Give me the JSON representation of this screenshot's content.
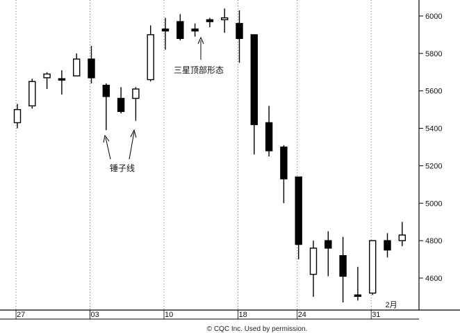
{
  "chart_data": {
    "type": "candlestick",
    "title": "",
    "xlabel": "",
    "ylabel": "",
    "ylim": [
      4450,
      6060
    ],
    "y_ticks": [
      6000,
      5800,
      5600,
      5400,
      5200,
      5000,
      4800,
      4600
    ],
    "y_tick_labels": [
      "6000",
      "5800",
      "5600",
      "5400",
      "5200",
      "5000",
      "4800",
      "4600"
    ],
    "x_tick_labels": [
      {
        "label": "27",
        "index": 0
      },
      {
        "label": "03",
        "index": 5
      },
      {
        "label": "10",
        "index": 10
      },
      {
        "label": "18",
        "index": 15
      },
      {
        "label": "24",
        "index": 19
      },
      {
        "label": "31",
        "index": 24
      },
      {
        "label": "2月",
        "index": 25
      }
    ],
    "grid": "vertical dotted at week starts",
    "candles": [
      {
        "o": 5430,
        "h": 5530,
        "l": 5400,
        "c": 5500
      },
      {
        "o": 5520,
        "h": 5665,
        "l": 5505,
        "c": 5650
      },
      {
        "o": 5670,
        "h": 5700,
        "l": 5610,
        "c": 5690
      },
      {
        "o": 5665,
        "h": 5710,
        "l": 5580,
        "c": 5665
      },
      {
        "o": 5680,
        "h": 5800,
        "l": 5680,
        "c": 5770
      },
      {
        "o": 5770,
        "h": 5840,
        "l": 5640,
        "c": 5670
      },
      {
        "o": 5630,
        "h": 5640,
        "l": 5390,
        "c": 5570
      },
      {
        "o": 5560,
        "h": 5620,
        "l": 5480,
        "c": 5490
      },
      {
        "o": 5560,
        "h": 5620,
        "l": 5440,
        "c": 5610
      },
      {
        "o": 5660,
        "h": 5950,
        "l": 5650,
        "c": 5900
      },
      {
        "o": 5930,
        "h": 5990,
        "l": 5820,
        "c": 5920
      },
      {
        "o": 5970,
        "h": 6010,
        "l": 5870,
        "c": 5880
      },
      {
        "o": 5930,
        "h": 5960,
        "l": 5890,
        "c": 5920
      },
      {
        "o": 5980,
        "h": 5990,
        "l": 5940,
        "c": 5970
      },
      {
        "o": 5980,
        "h": 6040,
        "l": 5910,
        "c": 5990
      },
      {
        "o": 5960,
        "h": 6030,
        "l": 5750,
        "c": 5880
      },
      {
        "o": 5900,
        "h": 5900,
        "l": 5260,
        "c": 5420
      },
      {
        "o": 5430,
        "h": 5520,
        "l": 5250,
        "c": 5280
      },
      {
        "o": 5300,
        "h": 5310,
        "l": 5000,
        "c": 5130
      },
      {
        "o": 5140,
        "h": 5140,
        "l": 4700,
        "c": 4780
      },
      {
        "o": 4620,
        "h": 4800,
        "l": 4500,
        "c": 4760
      },
      {
        "o": 4800,
        "h": 4850,
        "l": 4610,
        "c": 4760
      },
      {
        "o": 4720,
        "h": 4820,
        "l": 4470,
        "c": 4610
      },
      {
        "o": 4510,
        "h": 4660,
        "l": 4480,
        "c": 4510
      },
      {
        "o": 4520,
        "h": 4800,
        "l": 4510,
        "c": 4800
      },
      {
        "o": 4800,
        "h": 4840,
        "l": 4710,
        "c": 4750
      },
      {
        "o": 4800,
        "h": 4900,
        "l": 4770,
        "c": 4830
      }
    ],
    "annotations": [
      {
        "text": "三星顶部形态",
        "arrow_to_index": 12
      },
      {
        "text": "锤子线",
        "arrows_to_index": [
          6,
          8
        ]
      }
    ]
  },
  "credit": "© CQC Inc. Used by permission."
}
